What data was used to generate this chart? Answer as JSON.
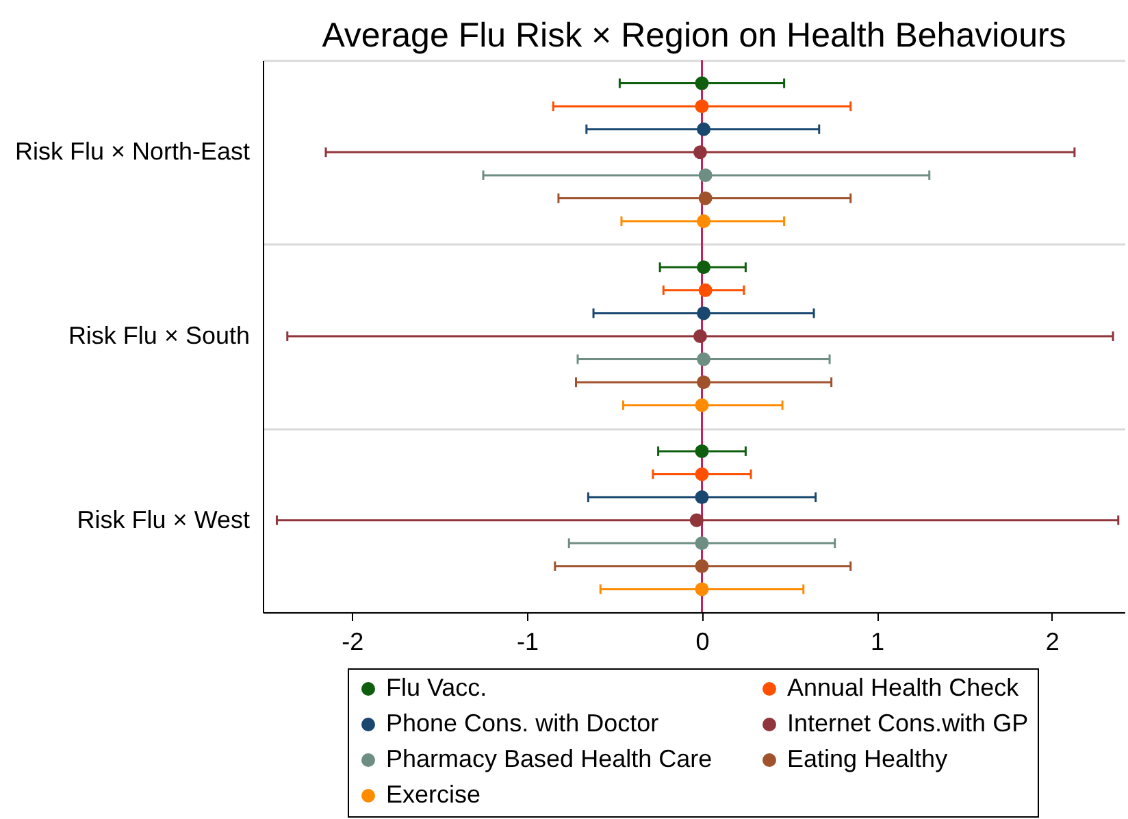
{
  "chart_data": {
    "type": "scatter",
    "orientation": "horizontal",
    "title": "Average Flu Risk × Region on Health Behaviours",
    "categories": [
      "Risk Flu × North-East",
      "Risk Flu × South",
      "Risk Flu × West"
    ],
    "series": [
      {
        "name": "Flu Vacc.",
        "color": "#0e5e0e",
        "values": [
          0,
          0.01,
          0
        ],
        "errors": [
          [
            -0.47,
            0.47
          ],
          [
            -0.24,
            0.25
          ],
          [
            -0.25,
            0.25
          ]
        ]
      },
      {
        "name": "Annual Health Check",
        "color": "#ff4f00",
        "values": [
          0,
          0.02,
          0
        ],
        "errors": [
          [
            -0.85,
            0.85
          ],
          [
            -0.22,
            0.24
          ],
          [
            -0.28,
            0.28
          ]
        ]
      },
      {
        "name": "Phone Cons. with Doctor",
        "color": "#1a476f",
        "values": [
          0.01,
          0.01,
          0
        ],
        "errors": [
          [
            -0.66,
            0.67
          ],
          [
            -0.62,
            0.64
          ],
          [
            -0.65,
            0.65
          ]
        ]
      },
      {
        "name": "Internet Cons.with GP",
        "color": "#90353b",
        "values": [
          -0.01,
          -0.01,
          -0.03
        ],
        "errors": [
          [
            -2.15,
            2.13
          ],
          [
            -2.37,
            2.35
          ],
          [
            -2.43,
            2.38
          ]
        ]
      },
      {
        "name": "Pharmacy Based Health Care",
        "color": "#6e8e84",
        "values": [
          0.02,
          0.01,
          0
        ],
        "errors": [
          [
            -1.25,
            1.3
          ],
          [
            -0.71,
            0.73
          ],
          [
            -0.76,
            0.76
          ]
        ]
      },
      {
        "name": "Eating Healthy",
        "color": "#a0522d",
        "values": [
          0.02,
          0.01,
          0
        ],
        "errors": [
          [
            -0.82,
            0.85
          ],
          [
            -0.72,
            0.74
          ],
          [
            -0.84,
            0.85
          ]
        ]
      },
      {
        "name": "Exercise",
        "color": "#ff8c00",
        "values": [
          0.01,
          0,
          0
        ],
        "errors": [
          [
            -0.46,
            0.47
          ],
          [
            -0.45,
            0.46
          ],
          [
            -0.58,
            0.58
          ]
        ]
      }
    ],
    "xlim": [
      -2.51,
      2.42
    ],
    "xticks": [
      -2,
      -1,
      0,
      1,
      2
    ],
    "ref_lines": [
      {
        "axis": "x",
        "value": 0,
        "color": "#c8205a"
      }
    ],
    "grid": "y",
    "legend": "bottom",
    "marker": "circle"
  }
}
